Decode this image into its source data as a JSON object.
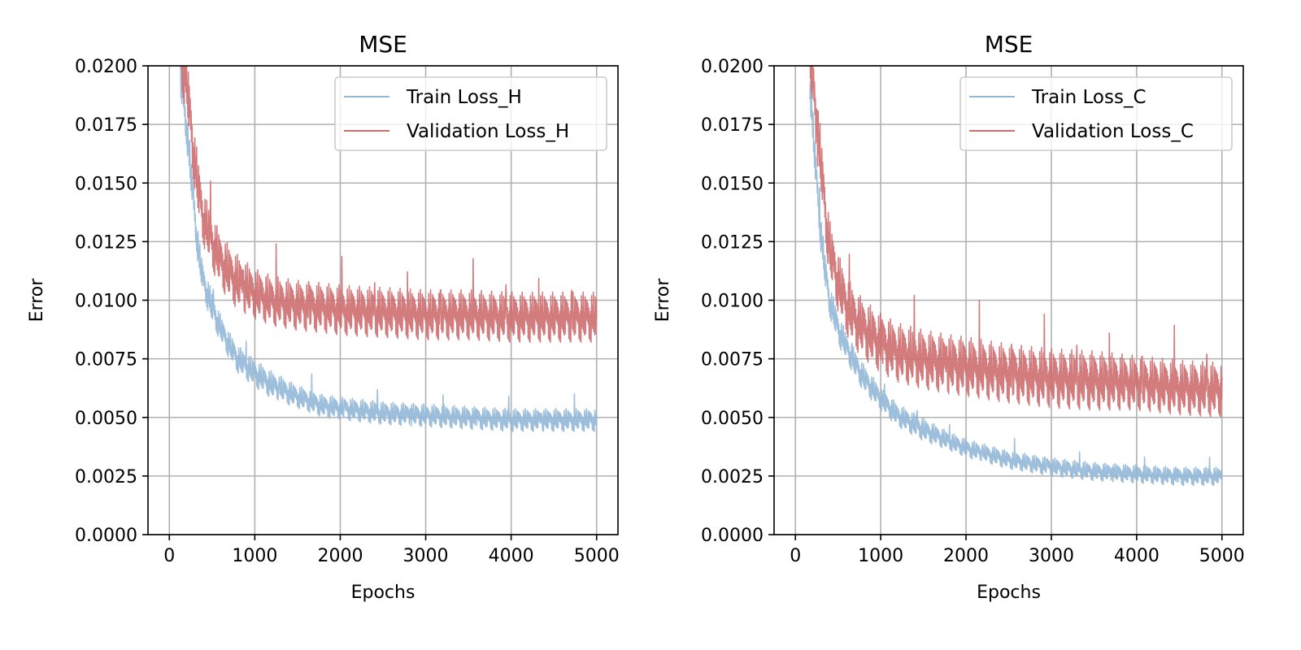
{
  "chart_data": [
    {
      "type": "line",
      "title": "MSE",
      "xlabel": "Epochs",
      "ylabel": "Error",
      "xlim": [
        -250,
        5250
      ],
      "ylim": [
        0.0,
        0.02
      ],
      "xticks": [
        0,
        1000,
        2000,
        3000,
        4000,
        5000
      ],
      "xtick_labels": [
        "0",
        "1000",
        "2000",
        "3000",
        "4000",
        "5000"
      ],
      "yticks": [
        0.0,
        0.0025,
        0.005,
        0.0075,
        0.01,
        0.0125,
        0.015,
        0.0175,
        0.02
      ],
      "ytick_labels": [
        "0.0000",
        "0.0025",
        "0.0050",
        "0.0075",
        "0.0100",
        "0.0125",
        "0.0150",
        "0.0175",
        "0.0200"
      ],
      "grid": true,
      "legend_position": "upper right",
      "series": [
        {
          "name": "Train Loss_H",
          "color": "#94b8d7",
          "x": [
            130,
            200,
            250,
            300,
            350,
            400,
            500,
            600,
            700,
            800,
            1000,
            1200,
            1500,
            1800,
            2000,
            2500,
            3000,
            3500,
            4000,
            4500,
            5000
          ],
          "y": [
            0.0195,
            0.0175,
            0.0155,
            0.0135,
            0.0118,
            0.0108,
            0.0097,
            0.0088,
            0.0081,
            0.0075,
            0.0069,
            0.0064,
            0.0059,
            0.0055,
            0.0054,
            0.0052,
            0.0051,
            0.005,
            0.0049,
            0.0049,
            0.0049
          ],
          "band": [
            0.001,
            0.0009,
            0.0009,
            0.0008,
            0.0008,
            0.0007,
            0.0007,
            0.0006,
            0.0006,
            0.0006,
            0.0006,
            0.0006,
            0.0005,
            0.0005,
            0.0005,
            0.0005,
            0.0005,
            0.0005,
            0.0005,
            0.0005,
            0.0005
          ]
        },
        {
          "name": "Validation Loss_H",
          "color": "#cd6e70",
          "x": [
            130,
            200,
            250,
            300,
            350,
            400,
            500,
            600,
            700,
            800,
            1000,
            1200,
            1500,
            1800,
            2000,
            2500,
            3000,
            3500,
            4000,
            4500,
            5000
          ],
          "y": [
            0.0205,
            0.0195,
            0.0175,
            0.0158,
            0.0145,
            0.0135,
            0.0125,
            0.0117,
            0.0112,
            0.0108,
            0.0103,
            0.01,
            0.0098,
            0.0097,
            0.0096,
            0.0095,
            0.0094,
            0.0094,
            0.0093,
            0.0093,
            0.0093
          ],
          "band": [
            0.0015,
            0.0015,
            0.0014,
            0.0013,
            0.0013,
            0.0012,
            0.0012,
            0.0012,
            0.0012,
            0.0012,
            0.0011,
            0.0011,
            0.0011,
            0.0011,
            0.0011,
            0.0011,
            0.0011,
            0.0011,
            0.0011,
            0.0011,
            0.0011
          ]
        }
      ]
    },
    {
      "type": "line",
      "title": "MSE",
      "xlabel": "Epochs",
      "ylabel": "Error",
      "xlim": [
        -250,
        5250
      ],
      "ylim": [
        0.0,
        0.02
      ],
      "xticks": [
        0,
        1000,
        2000,
        3000,
        4000,
        5000
      ],
      "xtick_labels": [
        "0",
        "1000",
        "2000",
        "3000",
        "4000",
        "5000"
      ],
      "yticks": [
        0.0,
        0.0025,
        0.005,
        0.0075,
        0.01,
        0.0125,
        0.015,
        0.0175,
        0.02
      ],
      "ytick_labels": [
        "0.0000",
        "0.0025",
        "0.0050",
        "0.0075",
        "0.0100",
        "0.0125",
        "0.0150",
        "0.0175",
        "0.0200"
      ],
      "grid": true,
      "legend_position": "upper right",
      "series": [
        {
          "name": "Train Loss_C",
          "color": "#94b8d7",
          "x": [
            170,
            200,
            250,
            300,
            350,
            400,
            500,
            600,
            700,
            800,
            1000,
            1200,
            1500,
            1800,
            2000,
            2500,
            3000,
            3500,
            4000,
            4500,
            5000
          ],
          "y": [
            0.0195,
            0.0175,
            0.015,
            0.0128,
            0.0112,
            0.01,
            0.0088,
            0.008,
            0.0073,
            0.0067,
            0.0058,
            0.0051,
            0.0045,
            0.004,
            0.0037,
            0.0032,
            0.0029,
            0.0027,
            0.0026,
            0.0025,
            0.0025
          ],
          "band": [
            0.001,
            0.0009,
            0.0009,
            0.0008,
            0.0008,
            0.0007,
            0.0007,
            0.0006,
            0.0006,
            0.0006,
            0.0005,
            0.0005,
            0.0005,
            0.0004,
            0.0004,
            0.0004,
            0.0004,
            0.0004,
            0.0004,
            0.0004,
            0.0004
          ]
        },
        {
          "name": "Validation Loss_C",
          "color": "#cd6e70",
          "x": [
            170,
            200,
            250,
            300,
            350,
            400,
            500,
            600,
            700,
            800,
            1000,
            1200,
            1500,
            1800,
            2000,
            2500,
            3000,
            3500,
            4000,
            4500,
            5000
          ],
          "y": [
            0.0205,
            0.0195,
            0.0175,
            0.0158,
            0.0138,
            0.0122,
            0.0108,
            0.0098,
            0.0092,
            0.0088,
            0.0082,
            0.0078,
            0.0075,
            0.0073,
            0.0072,
            0.0069,
            0.0067,
            0.0066,
            0.0065,
            0.0063,
            0.0062
          ],
          "band": [
            0.0015,
            0.0015,
            0.0014,
            0.0014,
            0.0013,
            0.0013,
            0.0013,
            0.0013,
            0.0013,
            0.0013,
            0.0013,
            0.0013,
            0.0013,
            0.0013,
            0.0013,
            0.0013,
            0.0013,
            0.0013,
            0.0012,
            0.0012,
            0.0012
          ]
        }
      ]
    }
  ]
}
